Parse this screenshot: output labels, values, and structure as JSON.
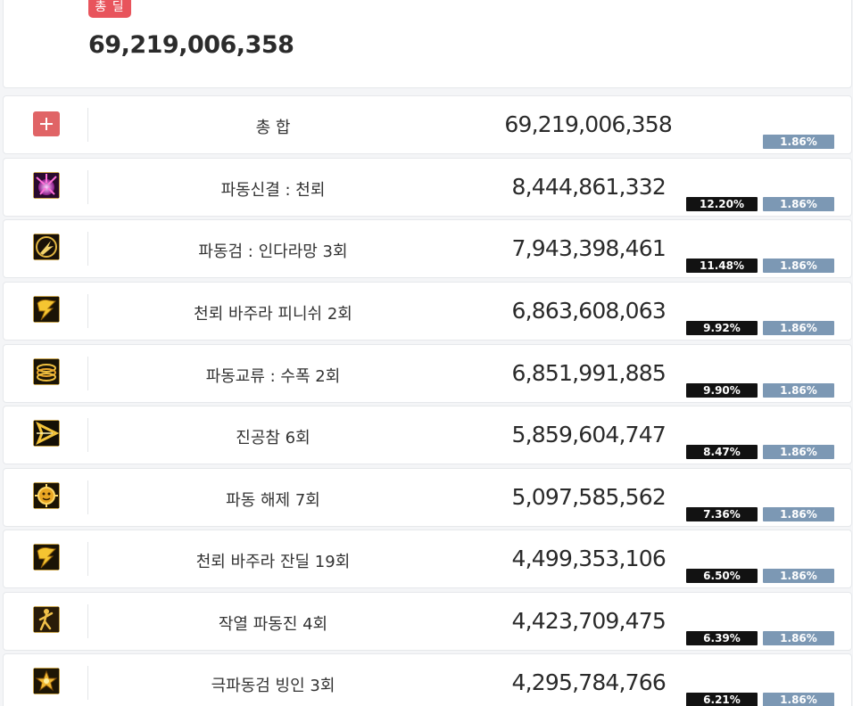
{
  "summary": {
    "badge": "총 딜",
    "total": "69,219,006,358"
  },
  "total_row": {
    "name": "총 합",
    "damage": "69,219,006,358",
    "avg_pct": "1.86%"
  },
  "skills": [
    {
      "name": "파동신결 : 천뢰",
      "damage": "8,444,861,332",
      "share_pct": "12.20%",
      "avg_pct": "1.86%",
      "icon": "wave-burst-icon"
    },
    {
      "name": "파동검 : 인다라망 3회",
      "damage": "7,943,398,461",
      "share_pct": "11.48%",
      "avg_pct": "1.86%",
      "icon": "indra-net-icon"
    },
    {
      "name": "천뢰 바주라 피니쉬 2회",
      "damage": "6,863,608,063",
      "share_pct": "9.92%",
      "avg_pct": "1.86%",
      "icon": "lightning-icon"
    },
    {
      "name": "파동교류 : 수폭 2회",
      "damage": "6,851,991,885",
      "share_pct": "9.90%",
      "avg_pct": "1.86%",
      "icon": "ring-icon"
    },
    {
      "name": "진공참 6회",
      "damage": "5,859,604,747",
      "share_pct": "8.47%",
      "avg_pct": "1.86%",
      "icon": "slash-arrow-icon"
    },
    {
      "name": "파동 해제 7회",
      "damage": "5,097,585,562",
      "share_pct": "7.36%",
      "avg_pct": "1.86%",
      "icon": "sun-face-icon"
    },
    {
      "name": "천뢰 바주라 잔딜 19회",
      "damage": "4,499,353,106",
      "share_pct": "6.50%",
      "avg_pct": "1.86%",
      "icon": "lightning-icon"
    },
    {
      "name": "작열 파동진 4회",
      "damage": "4,423,709,475",
      "share_pct": "6.39%",
      "avg_pct": "1.86%",
      "icon": "dancer-icon"
    },
    {
      "name": "극파동검 빙인 3회",
      "damage": "4,295,784,766",
      "share_pct": "6.21%",
      "avg_pct": "1.86%",
      "icon": "flower-icon"
    }
  ]
}
